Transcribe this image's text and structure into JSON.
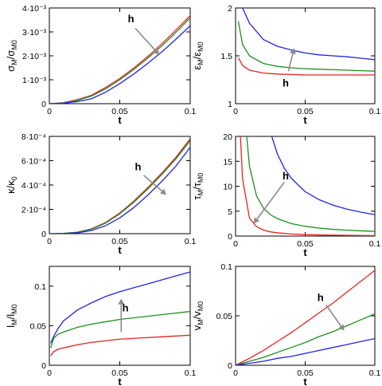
{
  "colors": {
    "red": "#e8221f",
    "green": "#1f8f1f",
    "blue": "#2323e6",
    "arrow": "#8a8a8a"
  },
  "annotation": "h",
  "chart_data": [
    {
      "type": "line",
      "xlabel": "t",
      "ylabel": {
        "main": "σ",
        "sub1": "M",
        "mid": "/σ",
        "sub2": "M0"
      },
      "xlim": [
        0,
        0.1
      ],
      "ylim": [
        0,
        0.004
      ],
      "xticks": [
        0,
        0.05,
        0.1
      ],
      "xtick_labels": [
        "0",
        "0.05",
        "0.1"
      ],
      "yticks": [
        0,
        0.001,
        0.002,
        0.003,
        0.004
      ],
      "ytick_labels": [
        "0",
        "1·10⁻³",
        "2·10⁻³",
        "3·10⁻³",
        "4·10⁻³"
      ],
      "x": [
        0,
        0.01,
        0.02,
        0.03,
        0.04,
        0.05,
        0.06,
        0.07,
        0.08,
        0.09,
        0.1
      ],
      "series": [
        {
          "color": "red",
          "values": [
            0,
            4e-05,
            0.00017,
            0.00035,
            0.00068,
            0.00105,
            0.00149,
            0.00198,
            0.00251,
            0.00308,
            0.00368
          ]
        },
        {
          "color": "green",
          "values": [
            0,
            3e-05,
            0.00014,
            0.00032,
            0.00062,
            0.001,
            0.00143,
            0.00191,
            0.00242,
            0.00299,
            0.00359
          ]
        },
        {
          "color": "blue",
          "values": [
            0,
            2e-05,
            9e-05,
            0.00021,
            0.00048,
            0.00084,
            0.00124,
            0.00169,
            0.00217,
            0.0027,
            0.00326
          ]
        }
      ],
      "annotation_pos": [
        0.058,
        0.0034
      ],
      "arrow": [
        [
          0.061,
          0.00315
        ],
        [
          0.078,
          0.00205
        ]
      ]
    },
    {
      "type": "line",
      "xlabel": "t",
      "ylabel": {
        "main": "ε",
        "sub1": "M",
        "mid": "/ε",
        "sub2": "M0"
      },
      "xlim": [
        0,
        0.1
      ],
      "ylim": [
        1,
        2
      ],
      "xticks": [
        0,
        0.05,
        0.1
      ],
      "xtick_labels": [
        "0",
        "0.05",
        "0.1"
      ],
      "yticks": [
        1,
        1.5,
        2
      ],
      "ytick_labels": [
        "1",
        "1.5",
        "2"
      ],
      "x": [
        0.002,
        0.005,
        0.01,
        0.02,
        0.03,
        0.04,
        0.05,
        0.06,
        0.07,
        0.08,
        0.09,
        0.1
      ],
      "series": [
        {
          "color": "red",
          "values": [
            1.48,
            1.4,
            1.35,
            1.32,
            1.31,
            1.305,
            1.3,
            1.3,
            1.3,
            1.3,
            1.3,
            1.3
          ]
        },
        {
          "color": "green",
          "values": [
            1.86,
            1.62,
            1.5,
            1.42,
            1.39,
            1.375,
            1.365,
            1.36,
            1.355,
            1.35,
            1.345,
            1.34
          ]
        },
        {
          "color": "blue",
          "values": [
            2.05,
            2.0,
            1.84,
            1.67,
            1.6,
            1.56,
            1.53,
            1.51,
            1.5,
            1.49,
            1.475,
            1.46
          ]
        }
      ],
      "annotation_pos": [
        0.036,
        1.18
      ],
      "arrow": [
        [
          0.038,
          1.34
        ],
        [
          0.042,
          1.58
        ]
      ]
    },
    {
      "type": "line",
      "xlabel": "t",
      "ylabel": {
        "main": "κ",
        "sub1": "",
        "mid": "/κ",
        "sub2": "0"
      },
      "xlim": [
        0,
        0.1
      ],
      "ylim": [
        0,
        0.0008
      ],
      "xticks": [
        0,
        0.05,
        0.1
      ],
      "xtick_labels": [
        "0",
        "0.05",
        "0.1"
      ],
      "yticks": [
        0,
        0.0002,
        0.0004,
        0.0006,
        0.0008
      ],
      "ytick_labels": [
        "0",
        "2·10⁻⁴",
        "4·10⁻⁴",
        "6·10⁻⁴",
        "8·10⁻⁴"
      ],
      "x": [
        0,
        0.01,
        0.02,
        0.03,
        0.04,
        0.05,
        0.06,
        0.07,
        0.08,
        0.09,
        0.1
      ],
      "series": [
        {
          "color": "red",
          "values": [
            0,
            2e-06,
            1.2e-05,
            4e-05,
            9.2e-05,
            0.00017,
            0.000268,
            0.00038,
            0.0005,
            0.00063,
            0.00078
          ]
        },
        {
          "color": "green",
          "values": [
            0,
            2e-06,
            1.1e-05,
            3.7e-05,
            8.7e-05,
            0.000163,
            0.000259,
            0.000369,
            0.000488,
            0.000617,
            0.000765
          ]
        },
        {
          "color": "blue",
          "values": [
            0,
            1e-06,
            7e-06,
            2.6e-05,
            6.6e-05,
            0.00013,
            0.000215,
            0.000318,
            0.000432,
            0.000558,
            0.00071
          ]
        }
      ],
      "annotation_pos": [
        0.063,
        0.00052
      ],
      "arrow": [
        [
          0.067,
          0.00048
        ],
        [
          0.083,
          0.00032
        ]
      ]
    },
    {
      "type": "line",
      "xlabel": "t",
      "ylabel": {
        "main": "τ",
        "sub1": "M",
        "mid": "/τ",
        "sub2": "M0"
      },
      "xlim": [
        0,
        0.1
      ],
      "ylim": [
        0,
        20
      ],
      "xticks": [
        0,
        0.05,
        0.1
      ],
      "xtick_labels": [
        "0",
        "0.05",
        "0.1"
      ],
      "yticks": [
        0,
        5,
        10,
        15,
        20
      ],
      "ytick_labels": [
        "0",
        "5",
        "10",
        "15",
        "20"
      ],
      "x": [
        0.003,
        0.005,
        0.01,
        0.015,
        0.02,
        0.025,
        0.03,
        0.04,
        0.05,
        0.06,
        0.07,
        0.08,
        0.09,
        0.1
      ],
      "series": [
        {
          "color": "red",
          "x": [
            0.0035,
            0.005,
            0.01,
            0.015,
            0.02,
            0.025,
            0.03,
            0.04,
            0.05,
            0.06,
            0.07,
            0.08,
            0.09,
            0.1
          ],
          "values": [
            20,
            11.5,
            3.6,
            1.9,
            1.2,
            0.85,
            0.65,
            0.42,
            0.3,
            0.23,
            0.18,
            0.15,
            0.12,
            0.1
          ]
        },
        {
          "color": "green",
          "x": [
            0.008,
            0.01,
            0.015,
            0.02,
            0.025,
            0.03,
            0.04,
            0.05,
            0.06,
            0.07,
            0.08,
            0.09,
            0.1
          ],
          "values": [
            20,
            14,
            8.1,
            5.6,
            4.3,
            3.5,
            2.5,
            1.95,
            1.6,
            1.35,
            1.18,
            1.05,
            0.95
          ]
        },
        {
          "color": "blue",
          "x": [
            0.026,
            0.03,
            0.035,
            0.04,
            0.05,
            0.06,
            0.07,
            0.08,
            0.09,
            0.1
          ],
          "values": [
            20,
            16.5,
            13.6,
            11.6,
            8.9,
            7.3,
            6.2,
            5.4,
            4.8,
            4.3
          ]
        }
      ],
      "annotation_pos": [
        0.036,
        11.4
      ],
      "arrow": [
        [
          0.035,
          10.8
        ],
        [
          0.013,
          2.5
        ]
      ]
    },
    {
      "type": "line",
      "xlabel": "t",
      "ylabel": {
        "main": "l",
        "sub1": "M",
        "mid": "/l",
        "sub2": "M0"
      },
      "xlim": [
        0,
        0.1
      ],
      "ylim": [
        0,
        0.125
      ],
      "xticks": [
        0,
        0.05,
        0.1
      ],
      "xtick_labels": [
        "0",
        "0.05",
        "0.1"
      ],
      "yticks": [
        0,
        0.05,
        0.1
      ],
      "ytick_labels": [
        "0",
        "0.05",
        "0.1"
      ],
      "x": [
        0.001,
        0.003,
        0.006,
        0.01,
        0.02,
        0.03,
        0.04,
        0.05,
        0.06,
        0.07,
        0.08,
        0.09,
        0.1
      ],
      "series": [
        {
          "color": "red",
          "values": [
            0.012,
            0.017,
            0.02,
            0.022,
            0.026,
            0.029,
            0.031,
            0.033,
            0.034,
            0.035,
            0.036,
            0.037,
            0.038
          ]
        },
        {
          "color": "green",
          "values": [
            0.022,
            0.034,
            0.039,
            0.042,
            0.048,
            0.052,
            0.055,
            0.058,
            0.06,
            0.062,
            0.064,
            0.066,
            0.068
          ]
        },
        {
          "color": "blue",
          "values": [
            0.028,
            0.036,
            0.046,
            0.056,
            0.07,
            0.079,
            0.087,
            0.093,
            0.098,
            0.103,
            0.108,
            0.113,
            0.118
          ]
        }
      ],
      "annotation_pos": [
        0.054,
        0.068
      ],
      "arrow": [
        [
          0.051,
          0.042
        ],
        [
          0.051,
          0.084
        ]
      ]
    },
    {
      "type": "line",
      "xlabel": "t",
      "ylabel": {
        "main": "v",
        "sub1": "M",
        "mid": "/v",
        "sub2": "M0"
      },
      "xlim": [
        0,
        0.1
      ],
      "ylim": [
        0,
        0.1
      ],
      "xticks": [
        0,
        0.05,
        0.1
      ],
      "xtick_labels": [
        "0",
        "0.05",
        "0.1"
      ],
      "yticks": [
        0,
        0.05,
        0.1
      ],
      "ytick_labels": [
        "0",
        "0.05",
        "0.1"
      ],
      "x": [
        0,
        0.01,
        0.02,
        0.03,
        0.04,
        0.05,
        0.06,
        0.07,
        0.08,
        0.09,
        0.1
      ],
      "series": [
        {
          "color": "red",
          "values": [
            0,
            0.007,
            0.015,
            0.024,
            0.033,
            0.043,
            0.053,
            0.063,
            0.074,
            0.085,
            0.096
          ]
        },
        {
          "color": "green",
          "values": [
            0,
            0.004,
            0.008,
            0.013,
            0.018,
            0.023,
            0.029,
            0.034,
            0.04,
            0.046,
            0.052
          ]
        },
        {
          "color": "blue",
          "values": [
            0,
            0.002,
            0.004,
            0.007,
            0.009,
            0.012,
            0.015,
            0.018,
            0.021,
            0.024,
            0.027
          ]
        }
      ],
      "annotation_pos": [
        0.061,
        0.065
      ],
      "arrow": [
        [
          0.065,
          0.061
        ],
        [
          0.078,
          0.035
        ]
      ]
    }
  ]
}
